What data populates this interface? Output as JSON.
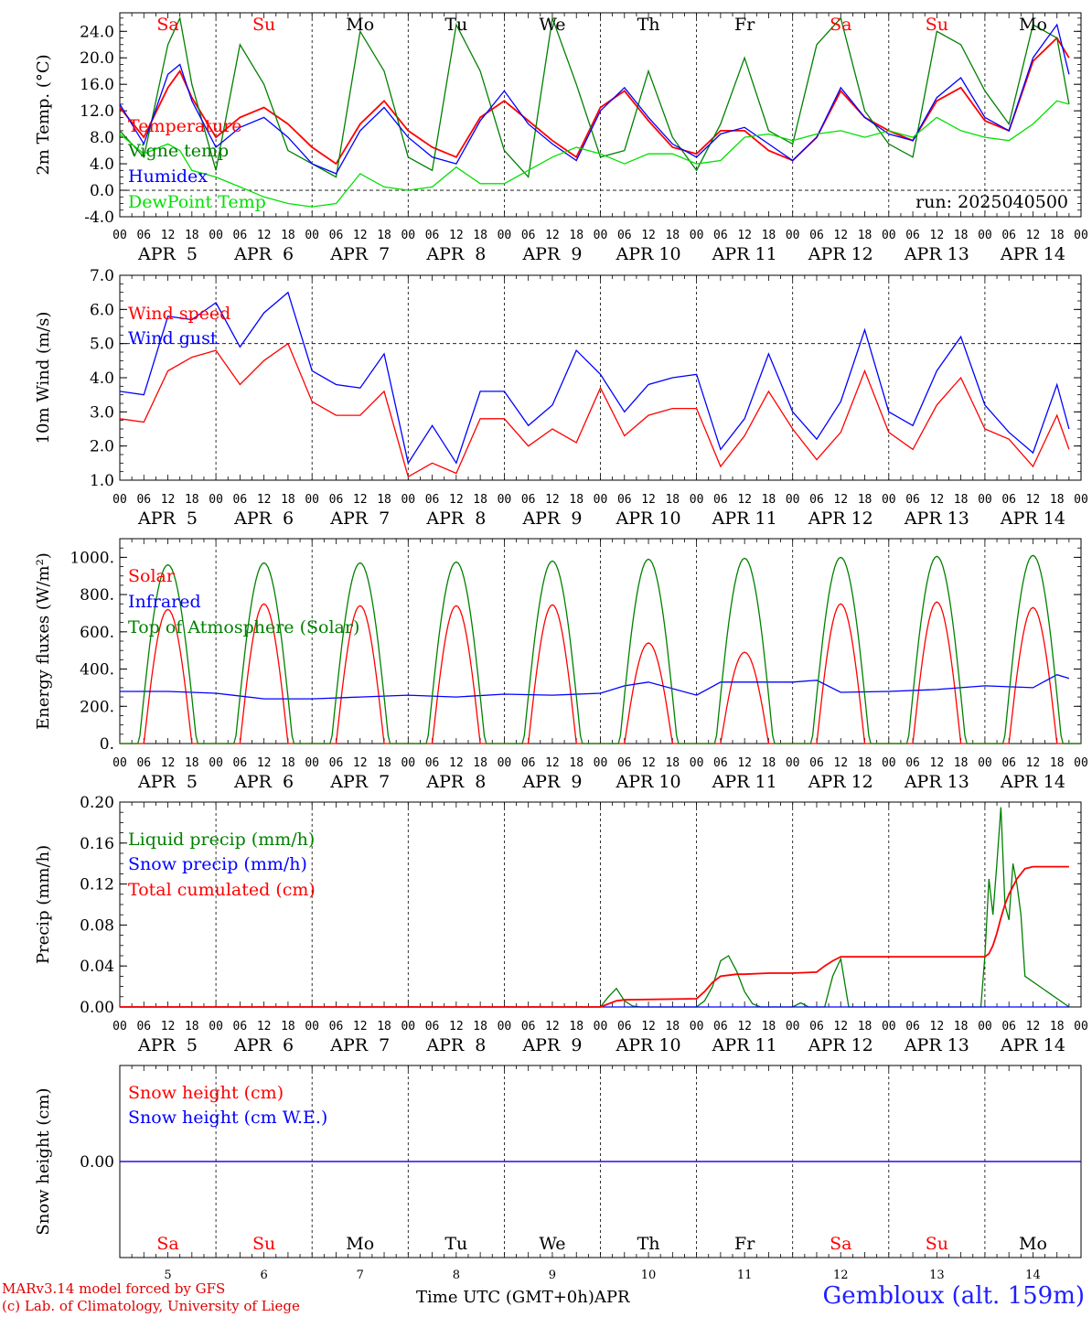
{
  "meta": {
    "run_label": "run: 2025040500",
    "location": "Gembloux (alt. 159m)",
    "credit_line1": "MARv3.14 model forced by GFS",
    "credit_line2": "(c) Lab. of Climatology, University of Liege",
    "time_axis_label": "Time UTC (GMT+0h)",
    "month_label": "APR"
  },
  "days": [
    {
      "abbr": "Sa",
      "weekend": true,
      "date_label": "APR  5",
      "num": "5"
    },
    {
      "abbr": "Su",
      "weekend": true,
      "date_label": "APR  6",
      "num": "6"
    },
    {
      "abbr": "Mo",
      "weekend": false,
      "date_label": "APR  7",
      "num": "7"
    },
    {
      "abbr": "Tu",
      "weekend": false,
      "date_label": "APR  8",
      "num": "8"
    },
    {
      "abbr": "We",
      "weekend": false,
      "date_label": "APR  9",
      "num": "9"
    },
    {
      "abbr": "Th",
      "weekend": false,
      "date_label": "APR 10",
      "num": "10"
    },
    {
      "abbr": "Fr",
      "weekend": false,
      "date_label": "APR 11",
      "num": "11"
    },
    {
      "abbr": "Sa",
      "weekend": true,
      "date_label": "APR 12",
      "num": "12"
    },
    {
      "abbr": "Su",
      "weekend": true,
      "date_label": "APR 13",
      "num": "13"
    },
    {
      "abbr": "Mo",
      "weekend": false,
      "date_label": "APR 14",
      "num": "14"
    }
  ],
  "hour_ticks": [
    "00",
    "06",
    "12",
    "18"
  ],
  "colors": {
    "red": "#ff0000",
    "green": "#008000",
    "blue": "#0000ff",
    "lightgreen": "#00e000",
    "weekend": "#ff0000",
    "weekday": "#000000"
  },
  "chart_data": [
    {
      "id": "temp",
      "type": "line",
      "ylabel": "2m Temp. (°C)",
      "ylim": [
        -4,
        26.8
      ],
      "yticks": [
        "24.0",
        "20.0",
        "16.0",
        "12.0",
        "8.0",
        "4.0",
        "0.0",
        "-4.0"
      ],
      "ytick_values": [
        24,
        20,
        16,
        12,
        8,
        4,
        0,
        -4
      ],
      "hline": 0,
      "x_unit": "hours since APR 5 00 UTC",
      "series": [
        {
          "name": "Temperature",
          "color": "#ff0000",
          "x": [
            0,
            6,
            12,
            15,
            18,
            24,
            30,
            36,
            42,
            48,
            54,
            60,
            66,
            72,
            78,
            84,
            90,
            96,
            102,
            108,
            114,
            120,
            126,
            132,
            138,
            144,
            150,
            156,
            162,
            168,
            174,
            180,
            186,
            192,
            198,
            204,
            210,
            216,
            222,
            228,
            234,
            237
          ],
          "y": [
            12.5,
            8.0,
            15.5,
            18.0,
            14.0,
            8.0,
            11.0,
            12.5,
            10.0,
            6.5,
            4.0,
            10.0,
            13.5,
            9.0,
            6.5,
            5.0,
            11.0,
            13.5,
            10.5,
            7.5,
            5.0,
            12.5,
            15.0,
            10.5,
            6.5,
            5.5,
            9.0,
            9.0,
            6.0,
            4.5,
            8.0,
            15.0,
            11.0,
            9.0,
            7.5,
            13.5,
            15.5,
            10.5,
            9.0,
            19.5,
            23.0,
            20.0
          ]
        },
        {
          "name": "Vigne temp",
          "color": "#008000",
          "x": [
            0,
            6,
            12,
            15,
            18,
            24,
            30,
            36,
            42,
            48,
            54,
            60,
            66,
            72,
            78,
            84,
            90,
            96,
            102,
            108,
            114,
            120,
            126,
            132,
            138,
            144,
            150,
            156,
            162,
            168,
            174,
            180,
            186,
            192,
            198,
            204,
            210,
            216,
            222,
            228,
            234,
            237
          ],
          "y": [
            9.0,
            5.0,
            22.0,
            26.0,
            16.0,
            3.0,
            22.0,
            16.0,
            6.0,
            4.0,
            2.0,
            24.0,
            18.0,
            5.0,
            3.0,
            25.0,
            18.0,
            6.0,
            2.0,
            26.0,
            16.0,
            5.0,
            6.0,
            18.0,
            8.0,
            3.0,
            10.0,
            20.0,
            9.0,
            7.0,
            22.0,
            26.0,
            12.0,
            7.0,
            5.0,
            24.0,
            22.0,
            15.0,
            10.0,
            25.0,
            23.0,
            13.0
          ]
        },
        {
          "name": "Humidex",
          "color": "#0000ff",
          "x": [
            0,
            6,
            12,
            15,
            18,
            24,
            30,
            36,
            42,
            48,
            54,
            60,
            66,
            72,
            78,
            84,
            90,
            96,
            102,
            108,
            114,
            120,
            126,
            132,
            138,
            144,
            150,
            156,
            162,
            168,
            174,
            180,
            186,
            192,
            198,
            204,
            210,
            216,
            222,
            228,
            234,
            237
          ],
          "y": [
            13.0,
            7.0,
            17.5,
            19.0,
            13.5,
            6.5,
            9.5,
            11.0,
            8.0,
            4.0,
            2.5,
            9.0,
            12.5,
            8.0,
            5.0,
            4.0,
            10.5,
            15.0,
            10.0,
            7.0,
            4.5,
            12.0,
            15.5,
            11.0,
            7.0,
            5.0,
            8.5,
            9.5,
            7.0,
            4.5,
            8.0,
            15.5,
            11.0,
            8.5,
            7.5,
            14.0,
            17.0,
            11.0,
            9.0,
            20.0,
            25.0,
            17.5
          ]
        },
        {
          "name": "DewPoint Temp",
          "color": "#00e000",
          "x": [
            0,
            6,
            12,
            15,
            18,
            24,
            30,
            36,
            42,
            48,
            54,
            60,
            66,
            72,
            78,
            84,
            90,
            96,
            102,
            108,
            114,
            120,
            126,
            132,
            138,
            144,
            150,
            156,
            162,
            168,
            174,
            180,
            186,
            192,
            198,
            204,
            210,
            216,
            222,
            228,
            234,
            237
          ],
          "y": [
            8.5,
            5.5,
            7.0,
            6.0,
            3.0,
            2.0,
            0.5,
            -1.0,
            -2.0,
            -2.5,
            -2.0,
            2.5,
            0.5,
            0.0,
            0.5,
            3.5,
            1.0,
            1.0,
            3.0,
            5.0,
            6.5,
            5.5,
            4.0,
            5.5,
            5.5,
            4.0,
            4.5,
            8.0,
            8.5,
            7.5,
            8.5,
            9.0,
            8.0,
            9.0,
            8.0,
            11.0,
            9.0,
            8.0,
            7.5,
            10.0,
            13.5,
            13.0
          ]
        }
      ]
    },
    {
      "id": "wind",
      "type": "line",
      "ylabel": "10m Wind (m/s)",
      "ylim": [
        1.0,
        7.0
      ],
      "yticks": [
        "7.0",
        "6.0",
        "5.0",
        "4.0",
        "3.0",
        "2.0",
        "1.0"
      ],
      "ytick_values": [
        7,
        6,
        5,
        4,
        3,
        2,
        1
      ],
      "hline": 5.0,
      "series": [
        {
          "name": "Wind speed",
          "color": "#ff0000",
          "x": [
            0,
            6,
            12,
            18,
            24,
            30,
            36,
            42,
            48,
            54,
            60,
            66,
            72,
            78,
            84,
            90,
            96,
            102,
            108,
            114,
            120,
            126,
            132,
            138,
            144,
            150,
            156,
            162,
            168,
            174,
            180,
            186,
            192,
            198,
            204,
            210,
            216,
            222,
            228,
            234,
            237
          ],
          "y": [
            2.8,
            2.7,
            4.2,
            4.6,
            4.8,
            3.8,
            4.5,
            5.0,
            3.3,
            2.9,
            2.9,
            3.6,
            1.1,
            1.5,
            1.2,
            2.8,
            2.8,
            2.0,
            2.5,
            2.1,
            3.7,
            2.3,
            2.9,
            3.1,
            3.1,
            1.4,
            2.3,
            3.6,
            2.5,
            1.6,
            2.4,
            4.2,
            2.4,
            1.9,
            3.2,
            4.0,
            2.5,
            2.2,
            1.4,
            2.9,
            1.9
          ]
        },
        {
          "name": "Wind gust",
          "color": "#0000ff",
          "x": [
            0,
            6,
            12,
            18,
            24,
            30,
            36,
            42,
            48,
            54,
            60,
            66,
            72,
            78,
            84,
            90,
            96,
            102,
            108,
            114,
            120,
            126,
            132,
            138,
            144,
            150,
            156,
            162,
            168,
            174,
            180,
            186,
            192,
            198,
            204,
            210,
            216,
            222,
            228,
            234,
            237
          ],
          "y": [
            3.6,
            3.5,
            5.8,
            5.7,
            6.2,
            4.9,
            5.9,
            6.5,
            4.2,
            3.8,
            3.7,
            4.7,
            1.5,
            2.6,
            1.5,
            3.6,
            3.6,
            2.6,
            3.2,
            4.8,
            4.1,
            3.0,
            3.8,
            4.0,
            4.1,
            1.9,
            2.8,
            4.7,
            3.0,
            2.2,
            3.3,
            5.4,
            3.0,
            2.6,
            4.2,
            5.2,
            3.2,
            2.4,
            1.8,
            3.8,
            2.5
          ]
        }
      ]
    },
    {
      "id": "energy",
      "type": "line",
      "ylabel": "Energy fluxes (W/m²)",
      "ylim": [
        0,
        1100
      ],
      "yticks": [
        "1000.",
        "800.",
        "600.",
        "400.",
        "200.",
        "0."
      ],
      "ytick_values": [
        1000,
        800,
        600,
        400,
        200,
        0
      ],
      "series": [
        {
          "name": "Solar",
          "color": "#ff0000",
          "peaks": [
            720,
            750,
            740,
            740,
            745,
            540,
            490,
            750,
            760,
            730
          ]
        },
        {
          "name": "Infrared",
          "color": "#0000ff",
          "x": [
            0,
            12,
            24,
            36,
            48,
            60,
            72,
            84,
            96,
            108,
            120,
            126,
            132,
            144,
            150,
            156,
            168,
            174,
            180,
            192,
            204,
            216,
            228,
            234,
            237
          ],
          "y": [
            280,
            280,
            270,
            240,
            240,
            250,
            260,
            250,
            265,
            260,
            270,
            310,
            330,
            260,
            330,
            330,
            330,
            340,
            275,
            280,
            290,
            310,
            300,
            370,
            350
          ]
        },
        {
          "name": "Top of Atmosphere (Solar)",
          "color": "#008000",
          "peaks": [
            960,
            970,
            970,
            975,
            980,
            990,
            995,
            1000,
            1005,
            1010
          ]
        }
      ]
    },
    {
      "id": "precip",
      "type": "line",
      "ylabel": "Precip (mm/h)",
      "ylim": [
        0,
        0.2
      ],
      "yticks": [
        "0.20",
        "0.16",
        "0.12",
        "0.08",
        "0.04",
        "0.00"
      ],
      "ytick_values": [
        0.2,
        0.16,
        0.12,
        0.08,
        0.04,
        0.0
      ],
      "series": [
        {
          "name": "Liquid precip (mm/h)",
          "color": "#008000",
          "x": [
            0,
            120,
            122,
            124,
            126,
            128,
            130,
            144,
            146,
            148,
            150,
            152,
            154,
            156,
            158,
            160,
            162,
            168,
            170,
            172,
            174,
            176,
            178,
            180,
            182,
            215,
            216,
            217,
            218,
            219,
            220,
            221,
            222,
            223,
            224,
            225,
            226,
            237
          ],
          "y": [
            0,
            0,
            0.01,
            0.018,
            0.006,
            0.001,
            0,
            0,
            0.006,
            0.02,
            0.045,
            0.05,
            0.035,
            0.015,
            0.003,
            0,
            0,
            0,
            0.004,
            0,
            0,
            0,
            0.03,
            0.047,
            0,
            0,
            0.05,
            0.125,
            0.09,
            0.14,
            0.195,
            0.1,
            0.085,
            0.14,
            0.12,
            0.09,
            0.03,
            0
          ]
        },
        {
          "name": "Snow precip (mm/h)",
          "color": "#0000ff",
          "x": [
            0,
            237
          ],
          "y": [
            0,
            0
          ]
        },
        {
          "name": "Total cumulated (cm)",
          "color": "#ff0000",
          "x": [
            0,
            120,
            122,
            124,
            126,
            144,
            146,
            148,
            150,
            152,
            154,
            156,
            162,
            168,
            174,
            176,
            178,
            180,
            182,
            216,
            217,
            218,
            219,
            220,
            221,
            222,
            224,
            226,
            228,
            237
          ],
          "y": [
            0,
            0,
            0.003,
            0.006,
            0.007,
            0.008,
            0.015,
            0.024,
            0.03,
            0.031,
            0.032,
            0.032,
            0.033,
            0.033,
            0.034,
            0.04,
            0.045,
            0.049,
            0.049,
            0.049,
            0.052,
            0.06,
            0.072,
            0.087,
            0.1,
            0.11,
            0.125,
            0.135,
            0.137,
            0.137
          ]
        }
      ]
    },
    {
      "id": "snow",
      "type": "line",
      "ylabel": "Snow height (cm)",
      "yticks": [
        "0.00"
      ],
      "ytick_values": [
        0
      ],
      "series": [
        {
          "name": "Snow height (cm)",
          "color": "#ff0000",
          "x": [
            0,
            240
          ],
          "y": [
            0,
            0
          ]
        },
        {
          "name": "Snow height (cm W.E.)",
          "color": "#0000ff",
          "x": [
            0,
            240
          ],
          "y": [
            0,
            0
          ]
        }
      ]
    }
  ]
}
